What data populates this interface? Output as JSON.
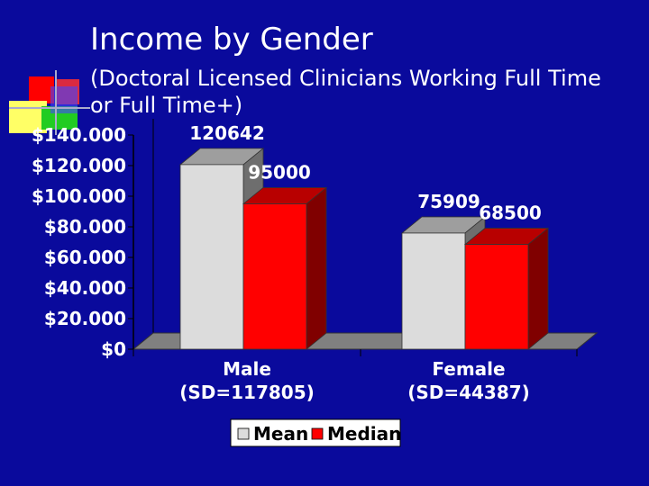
{
  "slide": {
    "title": "Income by Gender",
    "subtitle_line1": "(Doctoral Licensed Clinicians Working Full Time",
    "subtitle_line2": "or Full Time+)"
  },
  "colors": {
    "background": "#0a0a9c",
    "mean": "#dcdcdc",
    "median": "#ff0000"
  },
  "chart_data": {
    "type": "bar",
    "title": "",
    "xlabel": "",
    "ylabel": "",
    "ylim": [
      0,
      140000
    ],
    "yticks": [
      "$140.000",
      "$120.000",
      "$100.000",
      "$80.000",
      "$60.000",
      "$40.000",
      "$20.000",
      "$0"
    ],
    "categories": [
      {
        "name": "Male",
        "sd": "(SD=117805)"
      },
      {
        "name": "Female",
        "sd": "(SD=44387)"
      }
    ],
    "series": [
      {
        "name": "Mean",
        "values": [
          120642,
          75909
        ],
        "labels": [
          "120642",
          "75909"
        ]
      },
      {
        "name": "Median",
        "values": [
          95000,
          68500
        ],
        "labels": [
          "95000",
          "68500"
        ]
      }
    ],
    "legend": "bottom",
    "grid": false,
    "style": "3d"
  }
}
